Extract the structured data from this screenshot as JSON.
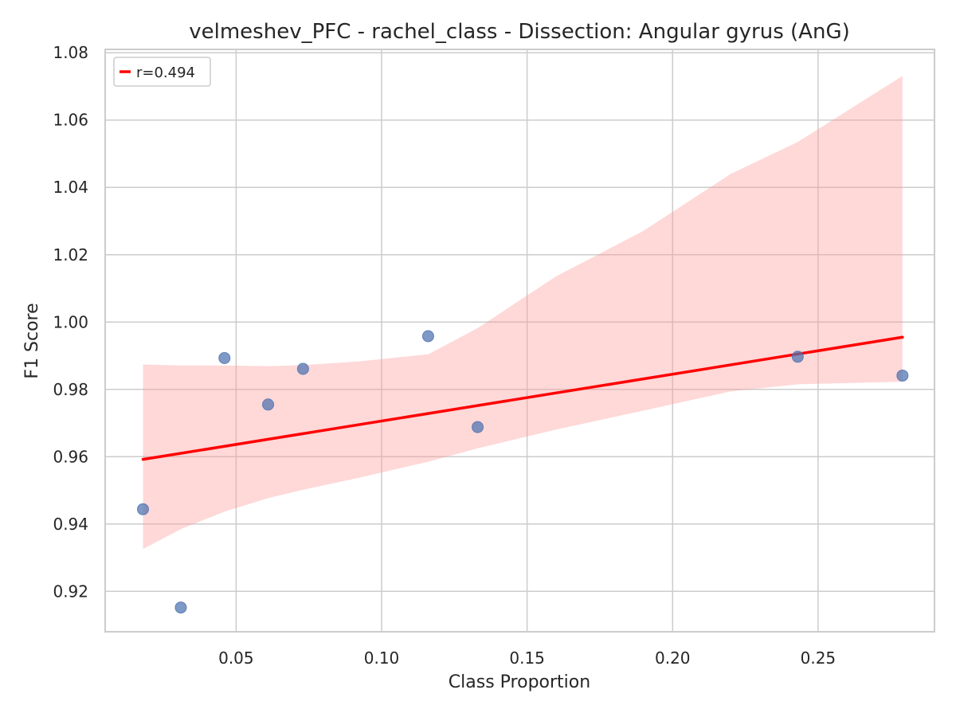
{
  "chart_data": {
    "type": "scatter",
    "title": "velmeshev_PFC - rachel_class - Dissection: Angular gyrus (AnG)",
    "xlabel": "Class Proportion",
    "ylabel": "F1 Score",
    "xlim": [
      0.005,
      0.29
    ],
    "ylim": [
      0.908,
      1.081
    ],
    "xticks": [
      0.05,
      0.1,
      0.15,
      0.2,
      0.25
    ],
    "xtick_labels": [
      "0.05",
      "0.10",
      "0.15",
      "0.20",
      "0.25"
    ],
    "yticks": [
      0.92,
      0.94,
      0.96,
      0.98,
      1.0,
      1.02,
      1.04,
      1.06,
      1.08
    ],
    "ytick_labels": [
      "0.92",
      "0.94",
      "0.96",
      "0.98",
      "1.00",
      "1.02",
      "1.04",
      "1.06",
      "1.08"
    ],
    "grid": true,
    "legend_position": "top-left",
    "legend_entry": "r=0.494",
    "series": [
      {
        "kind": "points",
        "color": "#4c72b0",
        "points": [
          {
            "x": 0.018,
            "y": 0.9444
          },
          {
            "x": 0.031,
            "y": 0.9152
          },
          {
            "x": 0.046,
            "y": 0.9893
          },
          {
            "x": 0.061,
            "y": 0.9755
          },
          {
            "x": 0.073,
            "y": 0.9861
          },
          {
            "x": 0.116,
            "y": 0.9958
          },
          {
            "x": 0.133,
            "y": 0.9688
          },
          {
            "x": 0.243,
            "y": 0.9897
          },
          {
            "x": 0.279,
            "y": 0.9841
          }
        ]
      },
      {
        "kind": "regression_line",
        "color": "#ff0000",
        "x": [
          0.018,
          0.279
        ],
        "y": [
          0.9592,
          0.9955
        ]
      },
      {
        "kind": "confidence_band",
        "color": "#ff9999",
        "x": [
          0.018,
          0.031,
          0.046,
          0.061,
          0.073,
          0.092,
          0.116,
          0.133,
          0.16,
          0.19,
          0.22,
          0.243,
          0.279
        ],
        "upper": [
          0.9874,
          0.9871,
          0.9871,
          0.9869,
          0.9872,
          0.9883,
          0.9904,
          0.9982,
          1.0136,
          1.0271,
          1.044,
          1.0535,
          1.0731
        ],
        "lower": [
          0.9326,
          0.9385,
          0.9437,
          0.9477,
          0.9502,
          0.9537,
          0.9585,
          0.9625,
          0.9681,
          0.9737,
          0.9794,
          0.9815,
          0.9823
        ]
      }
    ]
  }
}
